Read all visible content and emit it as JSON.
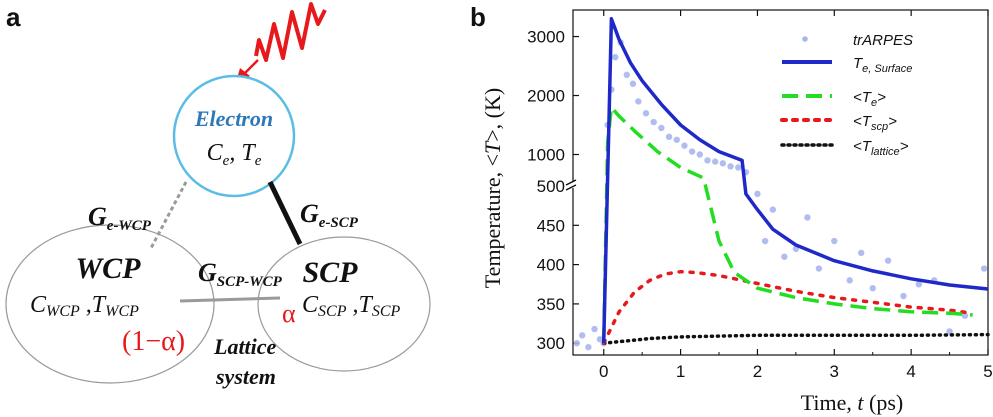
{
  "colors": {
    "electron_circle": "#5bbde6",
    "electron_label": "#2e78b8",
    "red": "#e8191c",
    "blue": "#1f28c8",
    "green": "#22dd22",
    "black": "#111111",
    "trarpes": "#a9b6ee"
  },
  "panel_a": {
    "label": "a",
    "electron": {
      "title": "Electron",
      "props_c": "C",
      "props_c_sub": "e",
      "props_t": "T",
      "props_t_sub": "e"
    },
    "wcp": {
      "title": "WCP",
      "c": "C",
      "c_sub": "WCP",
      "t": "T",
      "t_sub": "WCP",
      "fraction": "(1−α)"
    },
    "scp": {
      "title": "SCP",
      "alpha": "α",
      "c": "C",
      "c_sub": "SCP",
      "t": "T",
      "t_sub": "SCP"
    },
    "couplings": {
      "g_e_wcp": {
        "g": "G",
        "sub": "e-WCP"
      },
      "g_e_scp": {
        "g": "G",
        "sub": "e-SCP"
      },
      "g_scp_wcp": {
        "g": "G",
        "sub": "SCP-WCP"
      }
    },
    "lattice_line1": "Lattice",
    "lattice_line2": "system"
  },
  "panel_b": {
    "label": "b"
  },
  "chart_data": {
    "type": "line",
    "xlabel_prefix": "Time, ",
    "xlabel_var": "t",
    "xlabel_unit": " (ps)",
    "ylabel_prefix": "Temperature, <",
    "ylabel_var": "T",
    "ylabel_suffix": ">, (K)",
    "xlim": [
      -0.4,
      5.0
    ],
    "y_axis_break": true,
    "ylim_lower": [
      285,
      500
    ],
    "ylim_upper": [
      500,
      3450
    ],
    "x_ticks": [
      "0",
      "1",
      "2",
      "3",
      "4",
      "5"
    ],
    "y_ticks_lower": [
      "300",
      "350",
      "400",
      "450",
      "500"
    ],
    "y_ticks_upper": [
      "1000",
      "2000",
      "3000"
    ],
    "legend_position": "top-right",
    "legend": [
      {
        "label": "trARPES",
        "style": "dots"
      },
      {
        "label": "T",
        "sub": "e, Surface",
        "style": "solid"
      },
      {
        "label": "<T",
        "sub": "e",
        "after": ">",
        "style": "dashed"
      },
      {
        "label": "<T",
        "sub": "scp",
        "after": ">",
        "style": "dotted"
      },
      {
        "label": "<T",
        "sub": "lattice",
        "after": ">",
        "style": "dotted-fine"
      }
    ],
    "series": [
      {
        "name": "trARPES",
        "style": "scatter",
        "color": "#a9b6ee",
        "x": [
          -0.35,
          -0.28,
          -0.2,
          -0.12,
          -0.05,
          0.0,
          0.05,
          0.1,
          0.15,
          0.22,
          0.3,
          0.38,
          0.45,
          0.55,
          0.65,
          0.75,
          0.85,
          0.95,
          1.05,
          1.15,
          1.25,
          1.35,
          1.45,
          1.55,
          1.65,
          1.75,
          1.85,
          2.0,
          2.1,
          2.2,
          2.35,
          2.5,
          2.65,
          2.8,
          3.0,
          3.2,
          3.35,
          3.5,
          3.7,
          3.9,
          4.1,
          4.3,
          4.5,
          4.7,
          4.95
        ],
        "y": [
          300,
          310,
          295,
          318,
          305,
          300,
          1500,
          2100,
          2650,
          2900,
          2350,
          2200,
          1900,
          1700,
          1550,
          1450,
          1300,
          1250,
          1150,
          1050,
          1000,
          900,
          880,
          850,
          800,
          780,
          700,
          490,
          430,
          470,
          410,
          420,
          460,
          395,
          430,
          380,
          415,
          370,
          405,
          360,
          375,
          380,
          315,
          335,
          395
        ]
      },
      {
        "name": "T_e,Surface",
        "style": "solid",
        "color": "#1f28c8",
        "x": [
          0,
          0.1,
          0.2,
          0.35,
          0.5,
          0.75,
          1.0,
          1.25,
          1.5,
          1.8,
          1.85,
          2.0,
          2.2,
          2.5,
          3.0,
          3.5,
          4.0,
          4.5,
          5.0
        ],
        "y": [
          300,
          3300,
          2950,
          2550,
          2250,
          1850,
          1500,
          1250,
          1050,
          900,
          490,
          470,
          445,
          425,
          405,
          392,
          382,
          374,
          369
        ]
      },
      {
        "name": "<T_e>",
        "style": "dashed",
        "color": "#22dd22",
        "x": [
          0,
          0.05,
          0.1,
          0.2,
          0.4,
          0.7,
          1.0,
          1.3,
          1.4,
          1.5,
          1.7,
          2.0,
          2.5,
          3.0,
          3.5,
          4.0,
          4.5,
          4.8
        ],
        "y": [
          300,
          1200,
          1800,
          1650,
          1400,
          1050,
          780,
          600,
          470,
          430,
          390,
          370,
          358,
          350,
          344,
          340,
          338,
          336
        ]
      },
      {
        "name": "<T_scp>",
        "style": "dotted",
        "color": "#e8191c",
        "x": [
          0,
          0.2,
          0.4,
          0.6,
          0.8,
          1.0,
          1.2,
          1.5,
          1.8,
          2.0,
          2.5,
          3.0,
          3.5,
          4.0,
          4.5,
          4.8
        ],
        "y": [
          300,
          340,
          365,
          380,
          388,
          391,
          390,
          386,
          380,
          376,
          366,
          358,
          352,
          346,
          342,
          338
        ]
      },
      {
        "name": "<T_lattice>",
        "style": "dotted-fine",
        "color": "#111111",
        "x": [
          0,
          0.3,
          0.6,
          1.0,
          1.5,
          2.0,
          3.0,
          4.0,
          5.0
        ],
        "y": [
          300,
          303,
          306,
          308,
          309,
          310,
          310,
          310,
          311
        ]
      }
    ]
  }
}
